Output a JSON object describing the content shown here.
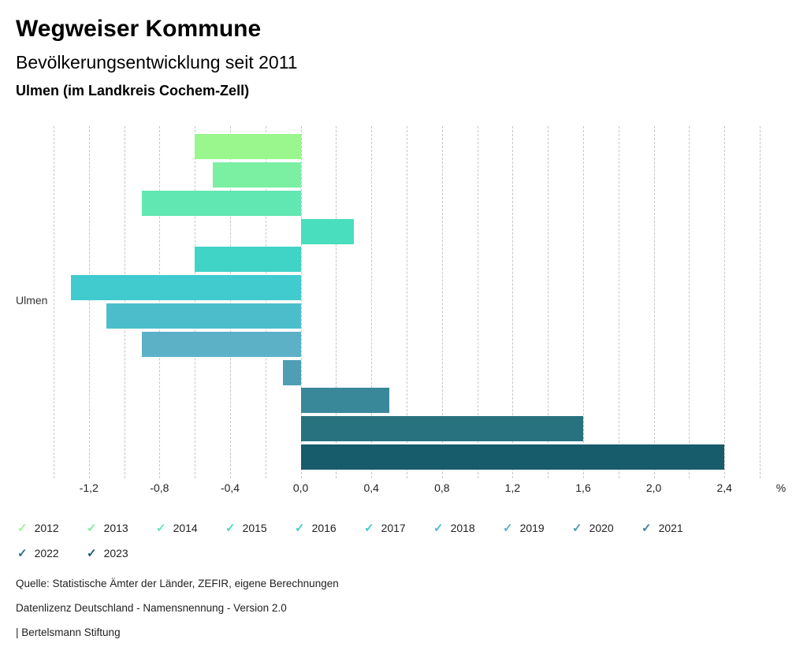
{
  "header": {
    "title": "Wegweiser Kommune",
    "subtitle": "Bevölkerungsentwicklung seit 2011",
    "region": "Ulmen (im Landkreis Cochem-Zell)"
  },
  "chart_data": {
    "type": "bar",
    "orientation": "horizontal",
    "title": "Bevölkerungsentwicklung seit 2011",
    "group_label": "Ulmen",
    "unit_label": "%",
    "xlim": [
      -1.4,
      2.6
    ],
    "gridline_step": 0.2,
    "grid": true,
    "legend_position": "bottom",
    "legend_items_per_row": 10,
    "series": [
      {
        "name": "2012",
        "value": -0.6,
        "color": "#99F78E"
      },
      {
        "name": "2013",
        "value": -0.5,
        "color": "#7BF0A3"
      },
      {
        "name": "2014",
        "value": -0.9,
        "color": "#61E7B2"
      },
      {
        "name": "2015",
        "value": 0.3,
        "color": "#49DEBD"
      },
      {
        "name": "2016",
        "value": -0.6,
        "color": "#3FD4C6"
      },
      {
        "name": "2017",
        "value": -1.3,
        "color": "#41CBCF"
      },
      {
        "name": "2018",
        "value": -1.1,
        "color": "#4CBECB"
      },
      {
        "name": "2019",
        "value": -0.9,
        "color": "#5CB1C7"
      },
      {
        "name": "2020",
        "value": -0.1,
        "color": "#4F9EB4"
      },
      {
        "name": "2021",
        "value": 0.5,
        "color": "#398899"
      },
      {
        "name": "2022",
        "value": 1.6,
        "color": "#28727F"
      },
      {
        "name": "2023",
        "value": 2.4,
        "color": "#175C6B"
      }
    ],
    "ticks": [
      {
        "value": -1.2,
        "label": "-1,2"
      },
      {
        "value": -0.8,
        "label": "-0,8"
      },
      {
        "value": -0.4,
        "label": "-0,4"
      },
      {
        "value": 0.0,
        "label": "0,0"
      },
      {
        "value": 0.4,
        "label": "0,4"
      },
      {
        "value": 0.8,
        "label": "0,8"
      },
      {
        "value": 1.2,
        "label": "1,2"
      },
      {
        "value": 1.6,
        "label": "1,6"
      },
      {
        "value": 2.0,
        "label": "2,0"
      },
      {
        "value": 2.4,
        "label": "2,4"
      }
    ]
  },
  "icons": {
    "legend_check": "✓"
  },
  "footer": {
    "source": "Quelle: Statistische Ämter der Länder, ZEFIR, eigene Berechnungen",
    "license": "Datenlizenz Deutschland - Namensnennung - Version 2.0",
    "attribution": "| Bertelsmann Stiftung"
  }
}
